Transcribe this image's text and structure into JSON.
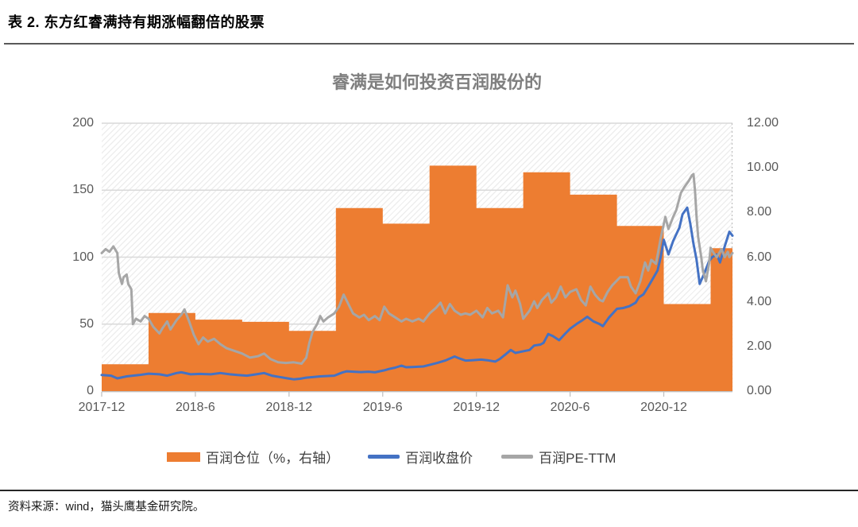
{
  "page": {
    "title": "表 2. 东方红睿满持有期涨幅翻倍的股票",
    "source_note": "资料来源：wind，猫头鹰基金研究院。"
  },
  "chart_data": {
    "type": "combo",
    "title": "睿满是如何投资百润股份的",
    "x_axis": {
      "labels": [
        "2017-12",
        "2018-6",
        "2018-12",
        "2019-6",
        "2019-12",
        "2020-6",
        "2020-12"
      ],
      "label_months": [
        0,
        6,
        12,
        18,
        24,
        30,
        36
      ],
      "range_months": [
        0,
        40.4
      ]
    },
    "left_axis": {
      "tick_labels": [
        "0",
        "50",
        "100",
        "150",
        "200"
      ],
      "tick_values": [
        0,
        50,
        100,
        150,
        200
      ],
      "grid_values": [
        50,
        100,
        150,
        200
      ],
      "range": [
        0,
        200
      ]
    },
    "right_axis": {
      "tick_labels": [
        "0.00",
        "2.00",
        "4.00",
        "6.00",
        "8.00",
        "10.00",
        "12.00"
      ],
      "tick_values": [
        0,
        2,
        4,
        6,
        8,
        10,
        12
      ],
      "range": [
        0,
        12
      ]
    },
    "colors": {
      "bar": "#ED7D31",
      "price_line": "#4472C4",
      "pe_line": "#A6A6A6",
      "gridline": "#D9D9D9",
      "axis_line": "#BFBFBF"
    },
    "legend": [
      {
        "label": "百润仓位（%，右轴）",
        "color": "#ED7D31",
        "type": "bar"
      },
      {
        "label": "百润收盘价",
        "color": "#4472C4",
        "type": "line"
      },
      {
        "label": "百润PE-TTM",
        "color": "#A6A6A6",
        "type": "line"
      }
    ],
    "series": [
      {
        "name": "百润仓位（%，右轴）",
        "type": "step-area",
        "axis": "right",
        "color": "#ED7D31",
        "quarter_start_months": [
          0,
          3,
          6,
          9,
          12,
          15,
          18,
          21,
          24,
          27,
          30,
          33,
          36,
          39
        ],
        "values": [
          1.2,
          3.5,
          3.2,
          3.1,
          2.7,
          8.2,
          7.5,
          10.1,
          8.2,
          9.8,
          8.8,
          7.4,
          3.9,
          6.4
        ]
      },
      {
        "name": "百润收盘价",
        "type": "line",
        "axis": "left",
        "color": "#4472C4",
        "points": [
          [
            0,
            12
          ],
          [
            0.6,
            11.5
          ],
          [
            1,
            9.5
          ],
          [
            1.6,
            11
          ],
          [
            2.4,
            12
          ],
          [
            3,
            13
          ],
          [
            3.7,
            12.5
          ],
          [
            4.2,
            11.5
          ],
          [
            4.8,
            13.5
          ],
          [
            5.1,
            14
          ],
          [
            5.7,
            12.5
          ],
          [
            6.3,
            12.8
          ],
          [
            7,
            12.5
          ],
          [
            7.6,
            13.5
          ],
          [
            8.2,
            12.5
          ],
          [
            8.7,
            12
          ],
          [
            9.3,
            11.5
          ],
          [
            9.9,
            12.5
          ],
          [
            10.4,
            13.5
          ],
          [
            10.9,
            11.5
          ],
          [
            11.4,
            10.5
          ],
          [
            11.9,
            9.5
          ],
          [
            12.3,
            8.8
          ],
          [
            12.7,
            9.2
          ],
          [
            13.1,
            10
          ],
          [
            13.6,
            10.5
          ],
          [
            14,
            11
          ],
          [
            14.9,
            11.5
          ],
          [
            15.4,
            13.8
          ],
          [
            15.7,
            14.8
          ],
          [
            16.1,
            14.5
          ],
          [
            16.6,
            14.2
          ],
          [
            17.1,
            14.5
          ],
          [
            17.5,
            14
          ],
          [
            18.1,
            15.5
          ],
          [
            18.4,
            16.5
          ],
          [
            18.8,
            17.5
          ],
          [
            19.2,
            19
          ],
          [
            19.5,
            17.8
          ],
          [
            19.9,
            18
          ],
          [
            20.6,
            18.4
          ],
          [
            21,
            19.5
          ],
          [
            21.5,
            21
          ],
          [
            22,
            22.8
          ],
          [
            22.6,
            25.8
          ],
          [
            23,
            24
          ],
          [
            23.3,
            22.8
          ],
          [
            23.7,
            23
          ],
          [
            24.3,
            23.5
          ],
          [
            24.7,
            23
          ],
          [
            25.2,
            22
          ],
          [
            25.5,
            24
          ],
          [
            25.9,
            27.7
          ],
          [
            26.2,
            30.7
          ],
          [
            26.5,
            28.5
          ],
          [
            26.9,
            29.5
          ],
          [
            27.4,
            30.7
          ],
          [
            27.7,
            34
          ],
          [
            28.1,
            34.7
          ],
          [
            28.3,
            36
          ],
          [
            28.6,
            42.6
          ],
          [
            28.9,
            41
          ],
          [
            29.3,
            38
          ],
          [
            29.7,
            43
          ],
          [
            30,
            46.5
          ],
          [
            30.4,
            50
          ],
          [
            30.8,
            53
          ],
          [
            31.1,
            55.5
          ],
          [
            31.5,
            52
          ],
          [
            31.9,
            50
          ],
          [
            32.1,
            48.5
          ],
          [
            32.5,
            55
          ],
          [
            33,
            61.4
          ],
          [
            33.4,
            62
          ],
          [
            33.8,
            63.4
          ],
          [
            34.2,
            66
          ],
          [
            34.4,
            70
          ],
          [
            34.7,
            72.3
          ],
          [
            35,
            78
          ],
          [
            35.3,
            84
          ],
          [
            35.6,
            90
          ],
          [
            35.8,
            100
          ],
          [
            36,
            113
          ],
          [
            36.3,
            102
          ],
          [
            36.6,
            112
          ],
          [
            37,
            122
          ],
          [
            37.2,
            132
          ],
          [
            37.5,
            137
          ],
          [
            37.7,
            125
          ],
          [
            37.9,
            110
          ],
          [
            38.1,
            98
          ],
          [
            38.3,
            80
          ],
          [
            38.6,
            88
          ],
          [
            38.9,
            97
          ],
          [
            39.1,
            100
          ],
          [
            39.4,
            102
          ],
          [
            39.6,
            96
          ],
          [
            39.9,
            108
          ],
          [
            40.2,
            119
          ],
          [
            40.4,
            116
          ]
        ]
      },
      {
        "name": "百润PE-TTM",
        "type": "line",
        "axis": "left",
        "color": "#A6A6A6",
        "points": [
          [
            0,
            103
          ],
          [
            0.25,
            106
          ],
          [
            0.5,
            104
          ],
          [
            0.75,
            108
          ],
          [
            1,
            103
          ],
          [
            1.1,
            88
          ],
          [
            1.3,
            80
          ],
          [
            1.4,
            85
          ],
          [
            1.6,
            87
          ],
          [
            1.7,
            80
          ],
          [
            1.9,
            76
          ],
          [
            2,
            50
          ],
          [
            2.2,
            54
          ],
          [
            2.5,
            52
          ],
          [
            2.75,
            56
          ],
          [
            3,
            54
          ],
          [
            3.3,
            48
          ],
          [
            3.7,
            43
          ],
          [
            3.9,
            47
          ],
          [
            4.2,
            52
          ],
          [
            4.4,
            46
          ],
          [
            4.8,
            53
          ],
          [
            5.1,
            57
          ],
          [
            5.3,
            61
          ],
          [
            5.6,
            52
          ],
          [
            5.9,
            42
          ],
          [
            6.2,
            35
          ],
          [
            6.5,
            40
          ],
          [
            6.8,
            37
          ],
          [
            7.2,
            39
          ],
          [
            7.6,
            35
          ],
          [
            8,
            32
          ],
          [
            8.5,
            30
          ],
          [
            9,
            28
          ],
          [
            9.5,
            25
          ],
          [
            10,
            26
          ],
          [
            10.4,
            28
          ],
          [
            10.8,
            24
          ],
          [
            11.3,
            21.5
          ],
          [
            11.8,
            21
          ],
          [
            12.3,
            21.5
          ],
          [
            12.8,
            20.5
          ],
          [
            13.1,
            25
          ],
          [
            13.3,
            36
          ],
          [
            13.5,
            44
          ],
          [
            13.8,
            50
          ],
          [
            14,
            56
          ],
          [
            14.2,
            52
          ],
          [
            14.5,
            55
          ],
          [
            14.9,
            58
          ],
          [
            15.2,
            63
          ],
          [
            15.5,
            72
          ],
          [
            15.8,
            65
          ],
          [
            16.1,
            58
          ],
          [
            16.5,
            55
          ],
          [
            16.8,
            57
          ],
          [
            17.1,
            53
          ],
          [
            17.5,
            56
          ],
          [
            17.8,
            53
          ],
          [
            18.1,
            63
          ],
          [
            18.4,
            58
          ],
          [
            18.8,
            55
          ],
          [
            19.2,
            52
          ],
          [
            19.5,
            54
          ],
          [
            19.9,
            52
          ],
          [
            20.3,
            54
          ],
          [
            20.6,
            52
          ],
          [
            21,
            58
          ],
          [
            21.4,
            62
          ],
          [
            21.7,
            66
          ],
          [
            22,
            58
          ],
          [
            22.3,
            65
          ],
          [
            22.6,
            60
          ],
          [
            23,
            57
          ],
          [
            23.3,
            58
          ],
          [
            23.6,
            57
          ],
          [
            24,
            60
          ],
          [
            24.4,
            55
          ],
          [
            24.7,
            62
          ],
          [
            25,
            58
          ],
          [
            25.4,
            60
          ],
          [
            25.7,
            55
          ],
          [
            26,
            79
          ],
          [
            26.3,
            70
          ],
          [
            26.5,
            75
          ],
          [
            26.8,
            65
          ],
          [
            27,
            54
          ],
          [
            27.4,
            60
          ],
          [
            27.7,
            67
          ],
          [
            27.9,
            62
          ],
          [
            28.2,
            68
          ],
          [
            28.6,
            73
          ],
          [
            28.8,
            66
          ],
          [
            29.1,
            70
          ],
          [
            29.4,
            78
          ],
          [
            29.7,
            70
          ],
          [
            30,
            74
          ],
          [
            30.4,
            76
          ],
          [
            30.7,
            68
          ],
          [
            31,
            64
          ],
          [
            31.3,
            78
          ],
          [
            31.6,
            72
          ],
          [
            31.9,
            68
          ],
          [
            32.1,
            67
          ],
          [
            32.4,
            74
          ],
          [
            32.7,
            79
          ],
          [
            33.2,
            85
          ],
          [
            33.7,
            85
          ],
          [
            33.9,
            78
          ],
          [
            34.2,
            73
          ],
          [
            34.5,
            82
          ],
          [
            34.8,
            96
          ],
          [
            35,
            90
          ],
          [
            35.2,
            98
          ],
          [
            35.5,
            95
          ],
          [
            35.8,
            114
          ],
          [
            36.1,
            130
          ],
          [
            36.3,
            121
          ],
          [
            36.6,
            130
          ],
          [
            36.8,
            135
          ],
          [
            37.1,
            148
          ],
          [
            37.3,
            152
          ],
          [
            37.6,
            157
          ],
          [
            37.8,
            161
          ],
          [
            37.9,
            162
          ],
          [
            38,
            150
          ],
          [
            38.1,
            130
          ],
          [
            38.2,
            115
          ],
          [
            38.4,
            100
          ],
          [
            38.5,
            90
          ],
          [
            38.7,
            82
          ],
          [
            38.9,
            95
          ],
          [
            39,
            107
          ],
          [
            39.2,
            103
          ],
          [
            39.4,
            100
          ],
          [
            39.7,
            106
          ],
          [
            39.9,
            100
          ],
          [
            40.1,
            104
          ],
          [
            40.2,
            100
          ],
          [
            40.4,
            103
          ]
        ]
      }
    ]
  }
}
